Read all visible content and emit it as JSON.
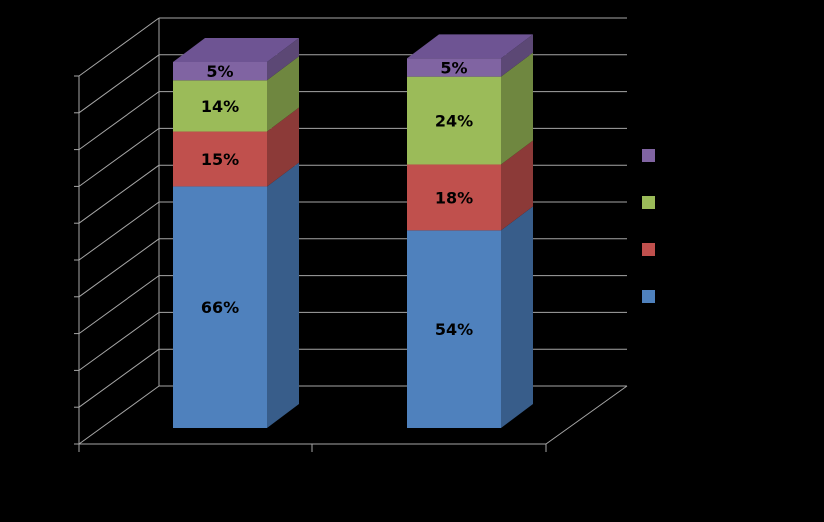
{
  "chart_data": {
    "type": "bar",
    "stacked": true,
    "style": "3d-column-100-percent",
    "categories": [
      "",
      ""
    ],
    "series": [
      {
        "color": "#4F81BD",
        "side": "#385D8A",
        "top": "#6A93C8",
        "values": [
          66,
          54
        ],
        "labels": [
          "66%",
          "54%"
        ]
      },
      {
        "color": "#C0504D",
        "side": "#8C3A38",
        "top": "#CC6B68",
        "values": [
          15,
          18
        ],
        "labels": [
          "15%",
          "18%"
        ]
      },
      {
        "color": "#9BBB59",
        "side": "#6F8740",
        "top": "#AEC878",
        "values": [
          14,
          24
        ],
        "labels": [
          "14%",
          "24%"
        ]
      },
      {
        "color": "#8064A2",
        "side": "#5C4875",
        "top": "#6E5493",
        "values": [
          5,
          5
        ],
        "labels": [
          "5%",
          "5%"
        ]
      }
    ],
    "ylim": [
      0,
      100
    ],
    "grid": true,
    "legend": "right"
  }
}
